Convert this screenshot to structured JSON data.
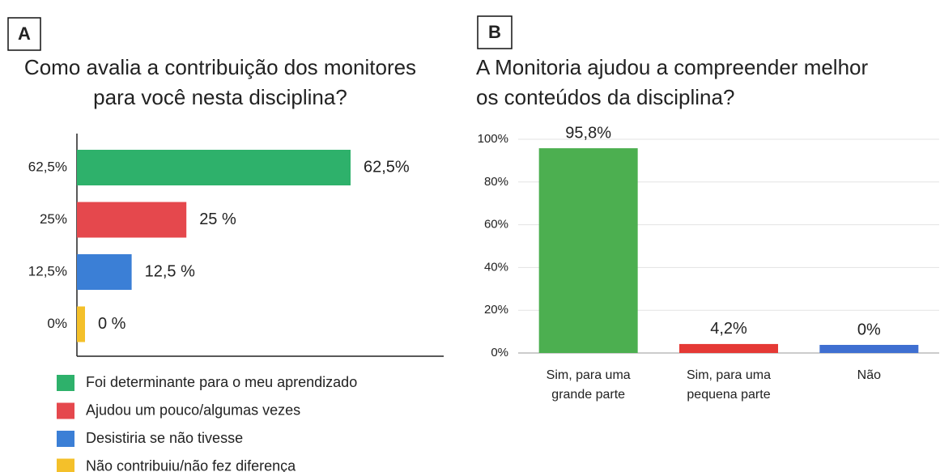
{
  "chart_data": [
    {
      "panel": "A",
      "type": "hbar",
      "title": [
        "Como avalia a contribuição dos monitores",
        "para você nesta disciplina?"
      ],
      "categories": [
        "62,5%",
        "25%",
        "12,5%",
        "0%"
      ],
      "values": [
        62.5,
        25,
        12.5,
        0
      ],
      "value_labels": [
        "62,5%",
        "25 %",
        "12,5 %",
        "0 %"
      ],
      "colors": [
        "#2eb16b",
        "#e5484d",
        "#3b7fd6",
        "#f4c02a"
      ],
      "legend": [
        "Foi determinante para o meu aprendizado",
        "Ajudou um pouco/algumas vezes",
        "Desistiria se não tivesse",
        "Não contribuiu/não fez diferença"
      ]
    },
    {
      "panel": "B",
      "type": "bar",
      "title": [
        "A Monitoria ajudou a compreender melhor",
        "os conteúdos da disciplina?"
      ],
      "categories": [
        [
          "Sim, para uma",
          "grande parte"
        ],
        [
          "Sim, para uma",
          "pequena parte"
        ],
        [
          "Não"
        ]
      ],
      "values": [
        95.8,
        4.2,
        0
      ],
      "value_labels": [
        "95,8%",
        "4,2%",
        "0%"
      ],
      "colors": [
        "#4caf50",
        "#e53935",
        "#3f6fd1"
      ],
      "ylim": [
        0,
        100
      ],
      "yticks": [
        {
          "value": 0,
          "label": "0%"
        },
        {
          "value": 20,
          "label": "20%"
        },
        {
          "value": 40,
          "label": "40%"
        },
        {
          "value": 60,
          "label": "60%"
        },
        {
          "value": 80,
          "label": "80%"
        },
        {
          "value": 100,
          "label": "100%"
        }
      ],
      "grid": true
    }
  ]
}
